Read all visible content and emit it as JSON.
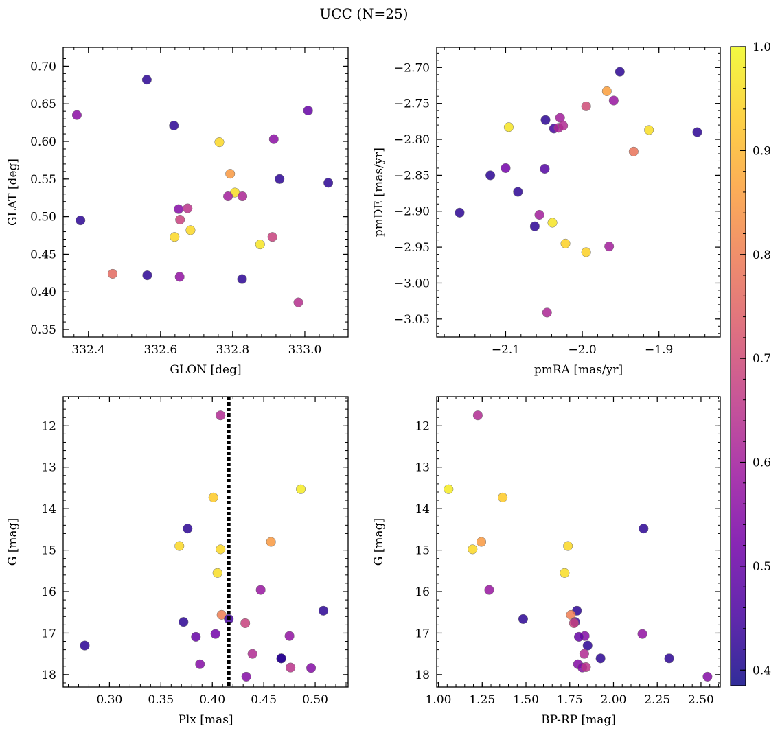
{
  "figure_title": "UCC (N=25)",
  "colorbar": {
    "range": [
      0.385,
      1.0
    ],
    "ticks": [
      0.4,
      0.5,
      0.6,
      0.7,
      0.8,
      0.9,
      1.0
    ],
    "tick_labels": [
      "0.4",
      "0.5",
      "0.6",
      "0.7",
      "0.8",
      "0.9",
      "1.0"
    ],
    "colormap": "plasma",
    "colormap_stops": [
      "#0d0887",
      "#47039f",
      "#7301a8",
      "#9c179e",
      "#bd3786",
      "#d8576b",
      "#ed7953",
      "#fb9f3a",
      "#fdca26",
      "#f0f921"
    ]
  },
  "chart_data": [
    {
      "type": "scatter",
      "title": "",
      "xlabel": "GLON [deg]",
      "ylabel": "GLAT [deg]",
      "xlim": [
        332.33,
        333.12
      ],
      "ylim": [
        0.34,
        0.725
      ],
      "xticks": [
        332.4,
        332.6,
        332.8,
        333.0
      ],
      "xtick_labels": [
        "332.4",
        "332.6",
        "332.8",
        "333.0"
      ],
      "yticks": [
        0.35,
        0.4,
        0.45,
        0.5,
        0.55,
        0.6,
        0.65,
        0.7
      ],
      "ytick_labels": [
        "0.35",
        "0.40",
        "0.45",
        "0.50",
        "0.55",
        "0.60",
        "0.65",
        "0.70"
      ],
      "invert_y": false,
      "points": [
        {
          "x": 332.368,
          "y": 0.635,
          "c": 0.56
        },
        {
          "x": 332.562,
          "y": 0.682,
          "c": 0.42
        },
        {
          "x": 332.637,
          "y": 0.621,
          "c": 0.42
        },
        {
          "x": 332.763,
          "y": 0.599,
          "c": 0.95
        },
        {
          "x": 332.914,
          "y": 0.603,
          "c": 0.56
        },
        {
          "x": 333.009,
          "y": 0.641,
          "c": 0.5
        },
        {
          "x": 332.793,
          "y": 0.557,
          "c": 0.85
        },
        {
          "x": 332.93,
          "y": 0.55,
          "c": 0.42
        },
        {
          "x": 333.065,
          "y": 0.545,
          "c": 0.42
        },
        {
          "x": 332.806,
          "y": 0.532,
          "c": 0.96
        },
        {
          "x": 332.787,
          "y": 0.527,
          "c": 0.6
        },
        {
          "x": 332.827,
          "y": 0.527,
          "c": 0.62
        },
        {
          "x": 332.378,
          "y": 0.495,
          "c": 0.42
        },
        {
          "x": 332.65,
          "y": 0.51,
          "c": 0.55
        },
        {
          "x": 332.675,
          "y": 0.511,
          "c": 0.65
        },
        {
          "x": 332.654,
          "y": 0.496,
          "c": 0.68
        },
        {
          "x": 332.639,
          "y": 0.473,
          "c": 0.95
        },
        {
          "x": 332.683,
          "y": 0.482,
          "c": 0.95
        },
        {
          "x": 332.876,
          "y": 0.463,
          "c": 0.97
        },
        {
          "x": 332.91,
          "y": 0.473,
          "c": 0.68
        },
        {
          "x": 332.467,
          "y": 0.424,
          "c": 0.76
        },
        {
          "x": 332.563,
          "y": 0.422,
          "c": 0.42
        },
        {
          "x": 332.653,
          "y": 0.42,
          "c": 0.57
        },
        {
          "x": 332.826,
          "y": 0.417,
          "c": 0.42
        },
        {
          "x": 332.982,
          "y": 0.386,
          "c": 0.64
        }
      ]
    },
    {
      "type": "scatter",
      "title": "",
      "xlabel": "pmRA [mas/yr]",
      "ylabel": "pmDE [mas/yr]",
      "xlim": [
        -2.19,
        -1.82
      ],
      "ylim": [
        -3.075,
        -2.672
      ],
      "xticks": [
        -2.1,
        -2.0,
        -1.9
      ],
      "xtick_labels": [
        "−2.1",
        "−2.0",
        "−1.9"
      ],
      "yticks": [
        -3.05,
        -3.0,
        -2.95,
        -2.9,
        -2.85,
        -2.8,
        -2.75,
        -2.7
      ],
      "ytick_labels": [
        "−3.05",
        "−3.00",
        "−2.95",
        "−2.90",
        "−2.85",
        "−2.80",
        "−2.75",
        "−2.70"
      ],
      "invert_y": false,
      "points": [
        {
          "x": -1.951,
          "y": -2.706,
          "c": 0.42
        },
        {
          "x": -1.968,
          "y": -2.733,
          "c": 0.86
        },
        {
          "x": -1.959,
          "y": -2.746,
          "c": 0.58
        },
        {
          "x": -1.995,
          "y": -2.754,
          "c": 0.7
        },
        {
          "x": -2.096,
          "y": -2.783,
          "c": 0.97
        },
        {
          "x": -2.048,
          "y": -2.773,
          "c": 0.42
        },
        {
          "x": -2.029,
          "y": -2.77,
          "c": 0.6
        },
        {
          "x": -2.037,
          "y": -2.785,
          "c": 0.45
        },
        {
          "x": -2.031,
          "y": -2.784,
          "c": 0.62
        },
        {
          "x": -2.025,
          "y": -2.781,
          "c": 0.63
        },
        {
          "x": -1.913,
          "y": -2.787,
          "c": 0.96
        },
        {
          "x": -1.85,
          "y": -2.79,
          "c": 0.42
        },
        {
          "x": -1.933,
          "y": -2.817,
          "c": 0.78
        },
        {
          "x": -2.1,
          "y": -2.84,
          "c": 0.52
        },
        {
          "x": -2.049,
          "y": -2.841,
          "c": 0.47
        },
        {
          "x": -2.12,
          "y": -2.85,
          "c": 0.42
        },
        {
          "x": -2.084,
          "y": -2.873,
          "c": 0.42
        },
        {
          "x": -2.16,
          "y": -2.902,
          "c": 0.42
        },
        {
          "x": -2.056,
          "y": -2.905,
          "c": 0.6
        },
        {
          "x": -2.039,
          "y": -2.916,
          "c": 0.97
        },
        {
          "x": -2.062,
          "y": -2.921,
          "c": 0.42
        },
        {
          "x": -2.022,
          "y": -2.945,
          "c": 0.94
        },
        {
          "x": -1.965,
          "y": -2.949,
          "c": 0.6
        },
        {
          "x": -1.995,
          "y": -2.957,
          "c": 0.94
        },
        {
          "x": -2.046,
          "y": -3.041,
          "c": 0.62
        }
      ]
    },
    {
      "type": "scatter",
      "title": "",
      "xlabel": "Plx [mas]",
      "ylabel": "G [mag]",
      "xlim": [
        0.255,
        0.532
      ],
      "ylim": [
        11.3,
        18.3
      ],
      "xticks": [
        0.3,
        0.35,
        0.4,
        0.45,
        0.5
      ],
      "xtick_labels": [
        "0.30",
        "0.35",
        "0.40",
        "0.45",
        "0.50"
      ],
      "yticks": [
        12,
        13,
        14,
        15,
        16,
        17,
        18
      ],
      "ytick_labels": [
        "12",
        "13",
        "14",
        "15",
        "16",
        "17",
        "18"
      ],
      "invert_y": true,
      "vline": {
        "x": 0.416,
        "style": "dotted",
        "color": "#000000"
      },
      "points": [
        {
          "x": 0.408,
          "y": 11.75,
          "c": 0.63
        },
        {
          "x": 0.486,
          "y": 13.53,
          "c": 0.98
        },
        {
          "x": 0.401,
          "y": 13.73,
          "c": 0.93
        },
        {
          "x": 0.376,
          "y": 14.48,
          "c": 0.42
        },
        {
          "x": 0.457,
          "y": 14.8,
          "c": 0.85
        },
        {
          "x": 0.368,
          "y": 14.9,
          "c": 0.95
        },
        {
          "x": 0.408,
          "y": 14.98,
          "c": 0.95
        },
        {
          "x": 0.405,
          "y": 15.55,
          "c": 0.96
        },
        {
          "x": 0.447,
          "y": 15.96,
          "c": 0.58
        },
        {
          "x": 0.508,
          "y": 16.46,
          "c": 0.42
        },
        {
          "x": 0.409,
          "y": 16.56,
          "c": 0.8
        },
        {
          "x": 0.416,
          "y": 16.66,
          "c": 0.45
        },
        {
          "x": 0.372,
          "y": 16.73,
          "c": 0.42
        },
        {
          "x": 0.432,
          "y": 16.76,
          "c": 0.68
        },
        {
          "x": 0.403,
          "y": 17.02,
          "c": 0.52
        },
        {
          "x": 0.475,
          "y": 17.07,
          "c": 0.57
        },
        {
          "x": 0.384,
          "y": 17.09,
          "c": 0.5
        },
        {
          "x": 0.276,
          "y": 17.3,
          "c": 0.42
        },
        {
          "x": 0.439,
          "y": 17.5,
          "c": 0.63
        },
        {
          "x": 0.467,
          "y": 17.61,
          "c": 0.4
        },
        {
          "x": 0.467,
          "y": 17.61,
          "c": 0.42
        },
        {
          "x": 0.388,
          "y": 17.75,
          "c": 0.55
        },
        {
          "x": 0.476,
          "y": 17.83,
          "c": 0.65
        },
        {
          "x": 0.496,
          "y": 17.84,
          "c": 0.55
        },
        {
          "x": 0.433,
          "y": 18.05,
          "c": 0.55
        }
      ]
    },
    {
      "type": "scatter",
      "title": "",
      "xlabel": "BP-RP [mag]",
      "ylabel": "G [mag]",
      "xlim": [
        0.99,
        2.61
      ],
      "ylim": [
        11.3,
        18.3
      ],
      "xticks": [
        1.0,
        1.25,
        1.5,
        1.75,
        2.0,
        2.25,
        2.5
      ],
      "xtick_labels": [
        "1.00",
        "1.25",
        "1.50",
        "1.75",
        "2.00",
        "2.25",
        "2.50"
      ],
      "yticks": [
        12,
        13,
        14,
        15,
        16,
        17,
        18
      ],
      "ytick_labels": [
        "12",
        "13",
        "14",
        "15",
        "16",
        "17",
        "18"
      ],
      "invert_y": true,
      "points": [
        {
          "x": 1.225,
          "y": 11.75,
          "c": 0.63
        },
        {
          "x": 1.058,
          "y": 13.53,
          "c": 0.98
        },
        {
          "x": 1.367,
          "y": 13.73,
          "c": 0.93
        },
        {
          "x": 2.172,
          "y": 14.48,
          "c": 0.42
        },
        {
          "x": 1.245,
          "y": 14.8,
          "c": 0.85
        },
        {
          "x": 1.74,
          "y": 14.9,
          "c": 0.95
        },
        {
          "x": 1.195,
          "y": 14.98,
          "c": 0.95
        },
        {
          "x": 1.721,
          "y": 15.55,
          "c": 0.96
        },
        {
          "x": 1.29,
          "y": 15.96,
          "c": 0.58
        },
        {
          "x": 1.791,
          "y": 16.46,
          "c": 0.42
        },
        {
          "x": 1.757,
          "y": 16.56,
          "c": 0.8
        },
        {
          "x": 1.484,
          "y": 16.66,
          "c": 0.42
        },
        {
          "x": 1.781,
          "y": 16.73,
          "c": 0.45
        },
        {
          "x": 1.774,
          "y": 16.76,
          "c": 0.68
        },
        {
          "x": 2.165,
          "y": 17.02,
          "c": 0.57
        },
        {
          "x": 1.836,
          "y": 17.07,
          "c": 0.55
        },
        {
          "x": 1.802,
          "y": 17.09,
          "c": 0.5
        },
        {
          "x": 1.852,
          "y": 17.3,
          "c": 0.42
        },
        {
          "x": 1.833,
          "y": 17.5,
          "c": 0.63
        },
        {
          "x": 1.926,
          "y": 17.61,
          "c": 0.42
        },
        {
          "x": 2.318,
          "y": 17.61,
          "c": 0.42
        },
        {
          "x": 1.797,
          "y": 17.75,
          "c": 0.55
        },
        {
          "x": 1.822,
          "y": 17.83,
          "c": 0.55
        },
        {
          "x": 1.843,
          "y": 17.82,
          "c": 0.65
        },
        {
          "x": 2.537,
          "y": 18.05,
          "c": 0.55
        }
      ]
    }
  ]
}
